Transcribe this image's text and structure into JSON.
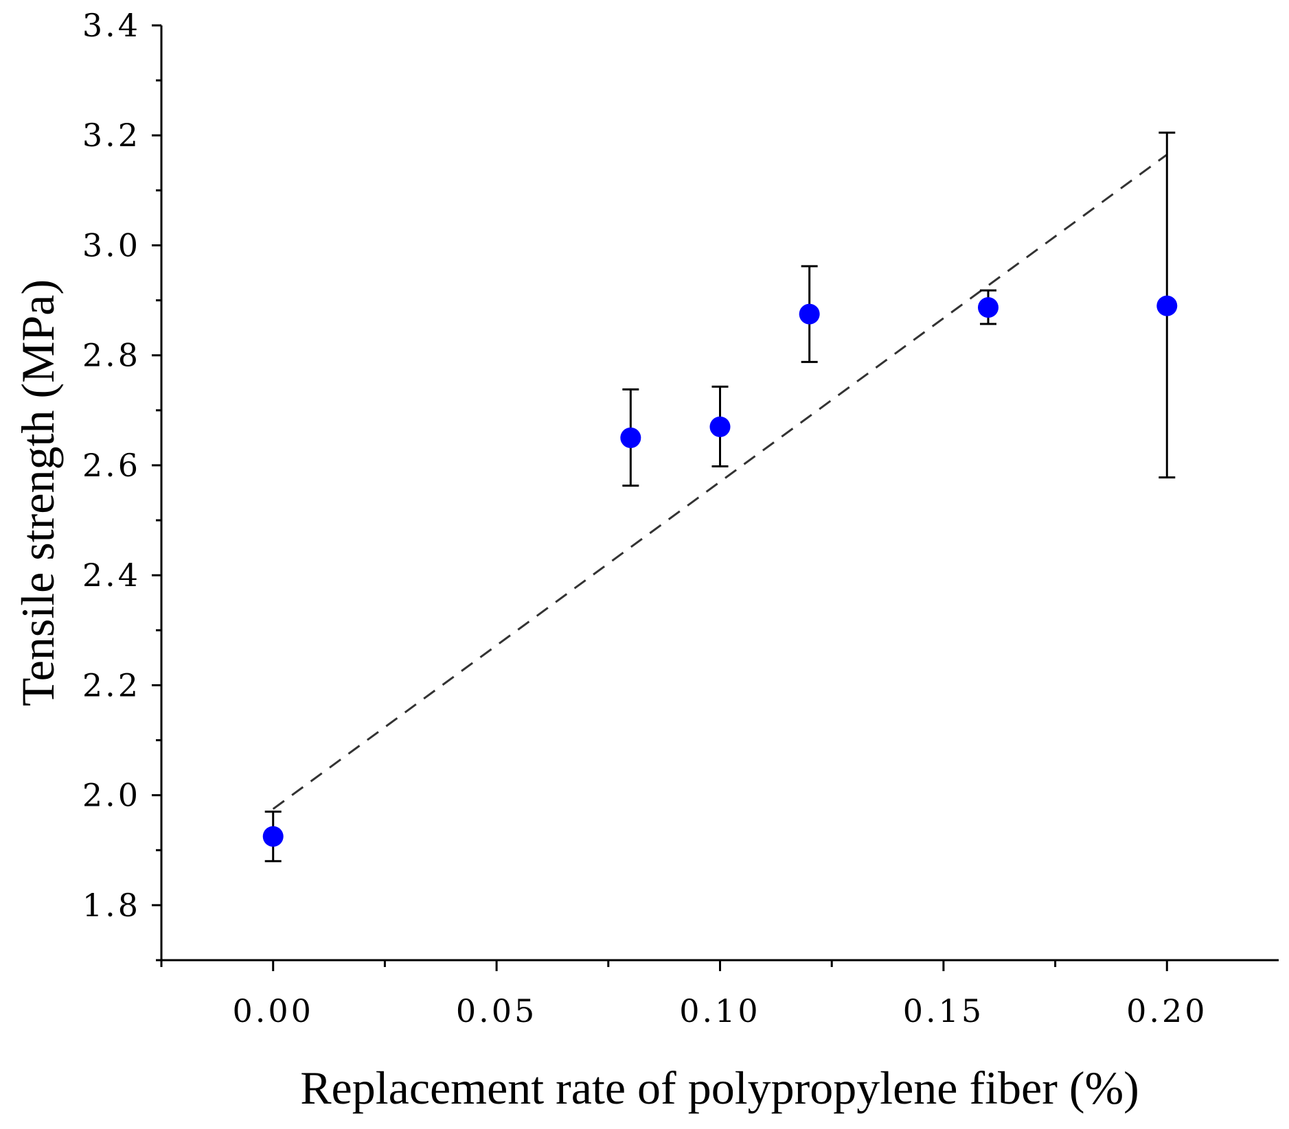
{
  "chart_data": {
    "type": "scatter",
    "xlabel": "Replacement rate of polypropylene fiber (%)",
    "ylabel": "Tensile strength (MPa)",
    "xlim": [
      -0.025,
      0.225
    ],
    "ylim": [
      1.7,
      3.4
    ],
    "x_ticks": [
      0.0,
      0.05,
      0.1,
      0.15,
      0.2
    ],
    "x_tick_labels": [
      "0.00",
      "0.05",
      "0.10",
      "0.15",
      "0.20"
    ],
    "y_ticks": [
      1.8,
      2.0,
      2.2,
      2.4,
      2.6,
      2.8,
      3.0,
      3.2,
      3.4
    ],
    "y_tick_labels": [
      "1.8",
      "2.0",
      "2.2",
      "2.4",
      "2.6",
      "2.8",
      "3.0",
      "3.2",
      "3.4"
    ],
    "series": [
      {
        "name": "Tensile strength",
        "color": "#0000ff",
        "points": [
          {
            "x": 0.0,
            "y": 1.925,
            "err_low": 1.88,
            "err_high": 1.97
          },
          {
            "x": 0.08,
            "y": 2.65,
            "err_low": 2.563,
            "err_high": 2.738
          },
          {
            "x": 0.1,
            "y": 2.67,
            "err_low": 2.598,
            "err_high": 2.743
          },
          {
            "x": 0.12,
            "y": 2.875,
            "err_low": 2.788,
            "err_high": 2.962
          },
          {
            "x": 0.16,
            "y": 2.887,
            "err_low": 2.857,
            "err_high": 2.918
          },
          {
            "x": 0.2,
            "y": 2.89,
            "err_low": 2.578,
            "err_high": 3.205
          }
        ]
      }
    ],
    "trendline": {
      "style": "dashed",
      "color": "#333333",
      "x": [
        0.0,
        0.2
      ],
      "y": [
        1.975,
        3.165
      ]
    },
    "grid": false,
    "legend": "none"
  }
}
